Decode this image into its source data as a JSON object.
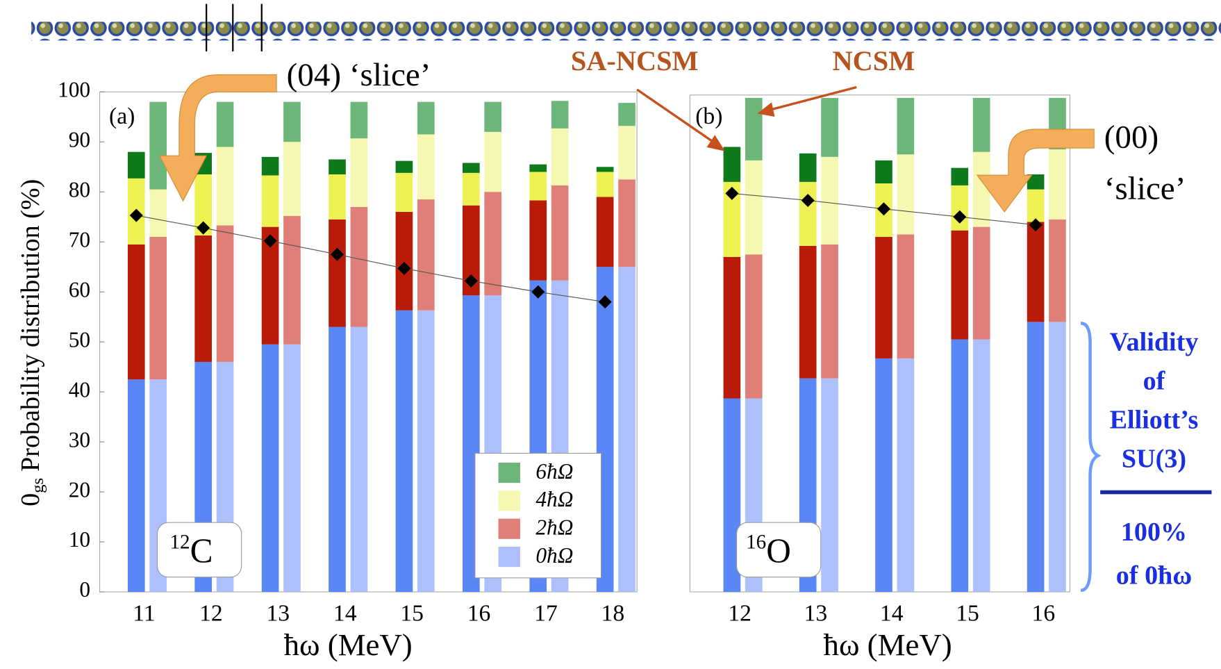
{
  "chart_data": [
    {
      "type": "bar",
      "panel_label": "(a)",
      "nucleus": {
        "mass": "12",
        "symbol": "C"
      },
      "xlabel": "ħω (MeV)",
      "ylabel": {
        "text": "0",
        "subscript": "gs",
        "rest": "Probability distribution (%)"
      },
      "categories": [
        "11",
        "12",
        "13",
        "14",
        "15",
        "16",
        "17",
        "18"
      ],
      "ylim": [
        0,
        100
      ],
      "yticks": [
        0,
        10,
        20,
        30,
        40,
        50,
        60,
        70,
        80,
        90,
        100
      ],
      "legend": "lower right",
      "series": [
        {
          "name": "0ħΩ",
          "colors": [
            "#5b86f5",
            "#aec0fb"
          ],
          "values": [
            [
              42.5,
              42.5
            ],
            [
              46,
              46
            ],
            [
              49.5,
              49.5
            ],
            [
              53,
              53
            ],
            [
              56.3,
              56.3
            ],
            [
              59.3,
              59.3
            ],
            [
              62.3,
              62.3
            ],
            [
              65,
              65
            ]
          ]
        },
        {
          "name": "2ħΩ",
          "colors": [
            "#b81c08",
            "#e07f78"
          ],
          "values": [
            [
              27,
              28.5
            ],
            [
              25.3,
              27.3
            ],
            [
              23.5,
              25.7
            ],
            [
              21.5,
              24
            ],
            [
              19.7,
              22.2
            ],
            [
              18,
              20.7
            ],
            [
              16,
              19
            ],
            [
              14,
              17.5
            ]
          ]
        },
        {
          "name": "4ħΩ",
          "colors": [
            "#eef152",
            "#f6f7b0"
          ],
          "values": [
            [
              13.2,
              9.5
            ],
            [
              12.2,
              15.7
            ],
            [
              10.3,
              14.8
            ],
            [
              9,
              13.7
            ],
            [
              7.8,
              13
            ],
            [
              6.5,
              12
            ],
            [
              5.7,
              11.4
            ],
            [
              5,
              10.7
            ]
          ]
        },
        {
          "name": "6ħΩ",
          "colors": [
            "#0f7a1c",
            "#6cb67a"
          ],
          "values": [
            [
              5.3,
              17.5
            ],
            [
              4.3,
              9
            ],
            [
              3.7,
              8
            ],
            [
              3,
              7.3
            ],
            [
              2.4,
              6.5
            ],
            [
              2,
              6
            ],
            [
              1.5,
              5.5
            ],
            [
              1,
              4.6
            ]
          ]
        }
      ],
      "points": [
        75.3,
        72.8,
        70.2,
        67.5,
        64.7,
        62.2,
        60,
        58
      ]
    },
    {
      "type": "bar",
      "panel_label": "(b)",
      "nucleus": {
        "mass": "16",
        "symbol": "O"
      },
      "xlabel": "ħω (MeV)",
      "categories": [
        "12",
        "13",
        "14",
        "15",
        "16"
      ],
      "ylim": [
        0,
        100
      ],
      "series": [
        {
          "colors": [
            "#5b86f5",
            "#aec0fb"
          ],
          "values": [
            [
              38.7,
              38.7
            ],
            [
              42.7,
              42.7
            ],
            [
              46.7,
              46.7
            ],
            [
              50.5,
              50.5
            ],
            [
              54,
              54
            ]
          ]
        },
        {
          "colors": [
            "#b81c08",
            "#e07f78"
          ],
          "values": [
            [
              28.3,
              28.8
            ],
            [
              26.5,
              26.8
            ],
            [
              24.3,
              24.8
            ],
            [
              21.8,
              22.5
            ],
            [
              20,
              20.5
            ]
          ]
        },
        {
          "colors": [
            "#eef152",
            "#f6f7b0"
          ],
          "values": [
            [
              15,
              18.8
            ],
            [
              12.8,
              17.5
            ],
            [
              10.7,
              16
            ],
            [
              9,
              15
            ],
            [
              6.5,
              14
            ]
          ]
        },
        {
          "colors": [
            "#0f7a1c",
            "#6cb67a"
          ],
          "values": [
            [
              7,
              12.5
            ],
            [
              5.7,
              11.8
            ],
            [
              4.6,
              11.3
            ],
            [
              3.5,
              10.8
            ],
            [
              3,
              10.3
            ]
          ]
        }
      ],
      "points": [
        79.7,
        78.3,
        76.6,
        75,
        73.4
      ]
    }
  ],
  "annotations": {
    "slice_04": "(04)  ‘slice’",
    "sa_ncsm": "SA-NCSM",
    "ncsm": "NCSM",
    "slice_00_a": "(00)",
    "slice_00_b": "‘slice’"
  },
  "side_note": {
    "validity": [
      "Validity",
      "of",
      "Elliott’s",
      "SU(3)"
    ],
    "fraction": [
      "100%",
      "of 0ħω"
    ]
  }
}
